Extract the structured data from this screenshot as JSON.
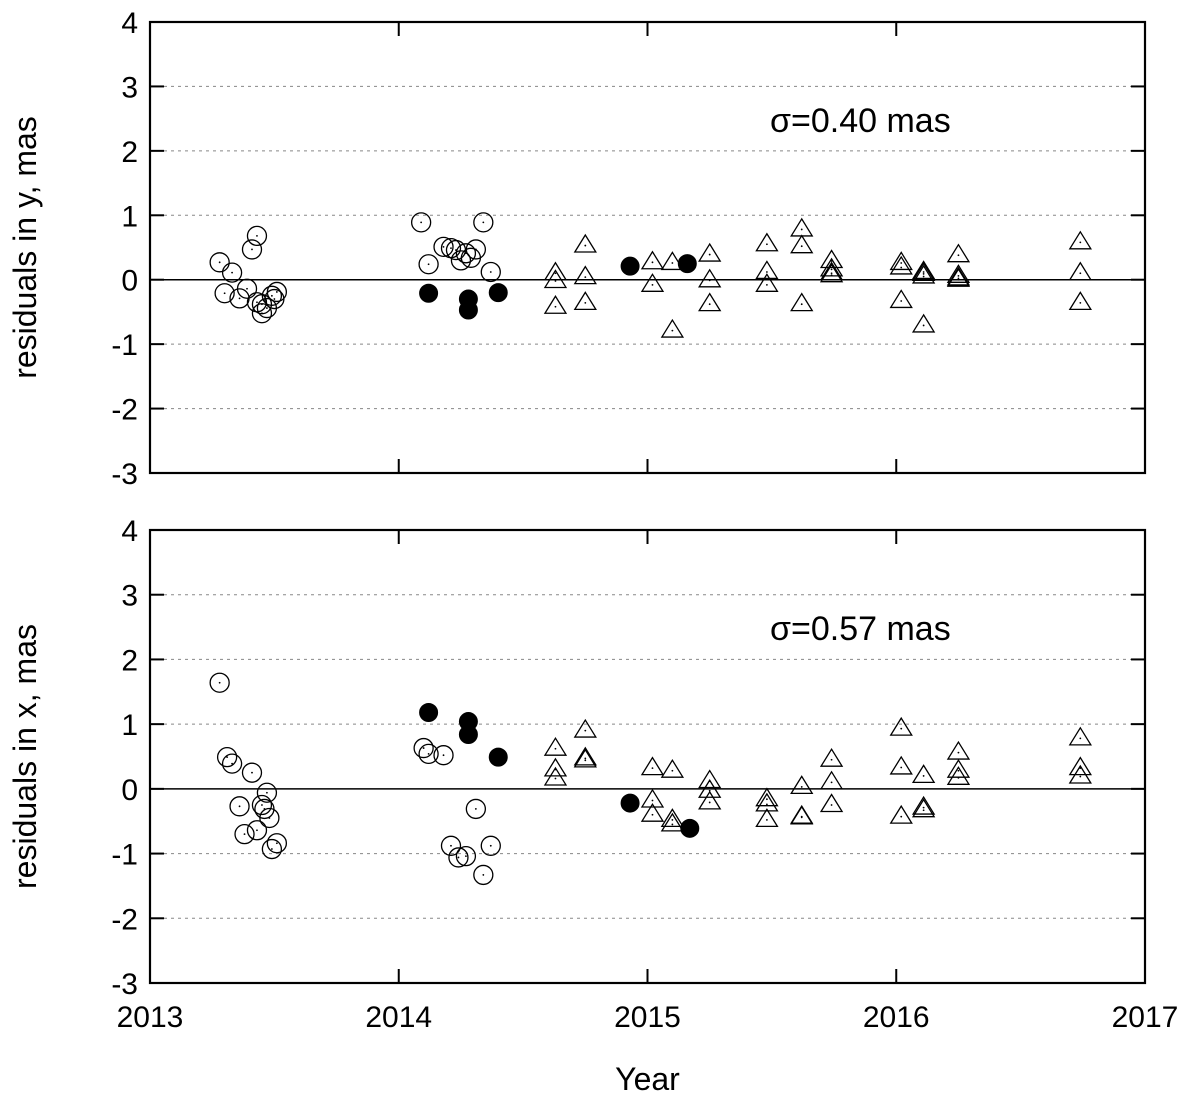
{
  "chart_data": [
    {
      "type": "scatter",
      "panel": "top",
      "ylabel": "residuals in y, mas",
      "annotation": "σ=0.40 mas",
      "xlim": [
        2013,
        2017
      ],
      "ylim": [
        -3,
        4
      ],
      "xticks": [
        "2013",
        "2014",
        "2015",
        "2016",
        "2017"
      ],
      "yticks": [
        "-3",
        "-2",
        "-1",
        "0",
        "1",
        "2",
        "3",
        "4"
      ],
      "grid": "horizontal dotted",
      "series": [
        {
          "marker": "open-circle",
          "points": [
            [
              2013.28,
              0.27
            ],
            [
              2013.3,
              -0.21
            ],
            [
              2013.33,
              0.11
            ],
            [
              2013.36,
              -0.29
            ],
            [
              2013.39,
              -0.14
            ],
            [
              2013.41,
              0.47
            ],
            [
              2013.43,
              0.68
            ],
            [
              2013.43,
              -0.35
            ],
            [
              2013.45,
              -0.52
            ],
            [
              2013.45,
              -0.38
            ],
            [
              2013.47,
              -0.44
            ],
            [
              2013.49,
              -0.25
            ],
            [
              2013.5,
              -0.3
            ],
            [
              2013.51,
              -0.19
            ],
            [
              2014.09,
              0.89
            ],
            [
              2014.12,
              0.24
            ],
            [
              2014.18,
              0.51
            ],
            [
              2014.21,
              0.49
            ],
            [
              2014.23,
              0.46
            ],
            [
              2014.25,
              0.3
            ],
            [
              2014.27,
              0.41
            ],
            [
              2014.29,
              0.34
            ],
            [
              2014.31,
              0.47
            ],
            [
              2014.34,
              0.89
            ],
            [
              2014.37,
              0.12
            ]
          ]
        },
        {
          "marker": "filled-circle",
          "points": [
            [
              2014.12,
              -0.21
            ],
            [
              2014.28,
              -0.3
            ],
            [
              2014.28,
              -0.47
            ],
            [
              2014.4,
              -0.2
            ],
            [
              2014.93,
              0.21
            ],
            [
              2015.16,
              0.25
            ]
          ]
        },
        {
          "marker": "open-triangle",
          "points": [
            [
              2014.63,
              0.1
            ],
            [
              2014.63,
              -0.02
            ],
            [
              2014.63,
              -0.42
            ],
            [
              2014.75,
              0.53
            ],
            [
              2014.75,
              0.04
            ],
            [
              2014.75,
              -0.36
            ],
            [
              2015.02,
              0.27
            ],
            [
              2015.02,
              -0.08
            ],
            [
              2015.1,
              0.26
            ],
            [
              2015.1,
              -0.79
            ],
            [
              2015.25,
              0.39
            ],
            [
              2015.25,
              -0.01
            ],
            [
              2015.25,
              -0.38
            ],
            [
              2015.48,
              0.55
            ],
            [
              2015.48,
              0.12
            ],
            [
              2015.48,
              -0.08
            ],
            [
              2015.62,
              0.78
            ],
            [
              2015.62,
              0.52
            ],
            [
              2015.62,
              -0.38
            ],
            [
              2015.74,
              0.29
            ],
            [
              2015.74,
              0.16
            ],
            [
              2015.74,
              0.1
            ],
            [
              2015.74,
              0.07
            ],
            [
              2016.02,
              0.26
            ],
            [
              2016.02,
              0.19
            ],
            [
              2016.02,
              -0.33
            ],
            [
              2016.11,
              0.12
            ],
            [
              2016.11,
              0.09
            ],
            [
              2016.11,
              0.05
            ],
            [
              2016.11,
              -0.71
            ],
            [
              2016.25,
              0.38
            ],
            [
              2016.25,
              0.06
            ],
            [
              2016.25,
              0.02
            ],
            [
              2016.25,
              0.0
            ],
            [
              2016.74,
              0.58
            ],
            [
              2016.74,
              0.1
            ],
            [
              2016.74,
              -0.36
            ]
          ]
        }
      ]
    },
    {
      "type": "scatter",
      "panel": "bottom",
      "ylabel": "residuals in x, mas",
      "xlabel": "Year",
      "annotation": "σ=0.57 mas",
      "xlim": [
        2013,
        2017
      ],
      "ylim": [
        -3,
        4
      ],
      "xticks": [
        "2013",
        "2014",
        "2015",
        "2016",
        "2017"
      ],
      "yticks": [
        "-3",
        "-2",
        "-1",
        "0",
        "1",
        "2",
        "3",
        "4"
      ],
      "grid": "horizontal dotted",
      "series": [
        {
          "marker": "open-circle",
          "points": [
            [
              2013.28,
              1.64
            ],
            [
              2013.31,
              0.49
            ],
            [
              2013.33,
              0.39
            ],
            [
              2013.36,
              -0.27
            ],
            [
              2013.38,
              -0.7
            ],
            [
              2013.41,
              0.25
            ],
            [
              2013.43,
              -0.64
            ],
            [
              2013.45,
              -0.25
            ],
            [
              2013.46,
              -0.31
            ],
            [
              2013.47,
              -0.06
            ],
            [
              2013.48,
              -0.45
            ],
            [
              2013.49,
              -0.93
            ],
            [
              2013.51,
              -0.84
            ],
            [
              2014.1,
              0.63
            ],
            [
              2014.12,
              0.54
            ],
            [
              2014.18,
              0.52
            ],
            [
              2014.21,
              -0.88
            ],
            [
              2014.24,
              -1.06
            ],
            [
              2014.27,
              -1.04
            ],
            [
              2014.31,
              -0.31
            ],
            [
              2014.34,
              -1.33
            ],
            [
              2014.37,
              -0.88
            ]
          ]
        },
        {
          "marker": "filled-circle",
          "points": [
            [
              2014.12,
              1.18
            ],
            [
              2014.28,
              1.04
            ],
            [
              2014.28,
              0.84
            ],
            [
              2014.4,
              0.49
            ],
            [
              2014.93,
              -0.22
            ],
            [
              2015.17,
              -0.61
            ]
          ]
        },
        {
          "marker": "open-triangle",
          "points": [
            [
              2014.63,
              0.62
            ],
            [
              2014.63,
              0.3
            ],
            [
              2014.63,
              0.16
            ],
            [
              2014.75,
              0.9
            ],
            [
              2014.75,
              0.47
            ],
            [
              2014.75,
              0.44
            ],
            [
              2015.02,
              0.32
            ],
            [
              2015.02,
              -0.18
            ],
            [
              2015.02,
              -0.4
            ],
            [
              2015.1,
              0.28
            ],
            [
              2015.1,
              -0.48
            ],
            [
              2015.1,
              -0.55
            ],
            [
              2015.25,
              0.12
            ],
            [
              2015.25,
              -0.03
            ],
            [
              2015.25,
              -0.21
            ],
            [
              2015.48,
              -0.16
            ],
            [
              2015.48,
              -0.24
            ],
            [
              2015.48,
              -0.48
            ],
            [
              2015.62,
              0.03
            ],
            [
              2015.62,
              -0.43
            ],
            [
              2015.62,
              -0.44
            ],
            [
              2015.74,
              0.45
            ],
            [
              2015.74,
              0.1
            ],
            [
              2015.74,
              -0.25
            ],
            [
              2016.02,
              0.93
            ],
            [
              2016.02,
              0.33
            ],
            [
              2016.02,
              -0.43
            ],
            [
              2016.11,
              0.2
            ],
            [
              2016.11,
              -0.29
            ],
            [
              2016.11,
              -0.33
            ],
            [
              2016.25,
              0.56
            ],
            [
              2016.25,
              0.28
            ],
            [
              2016.25,
              0.17
            ],
            [
              2016.74,
              0.78
            ],
            [
              2016.74,
              0.32
            ],
            [
              2016.74,
              0.19
            ]
          ]
        }
      ]
    }
  ]
}
